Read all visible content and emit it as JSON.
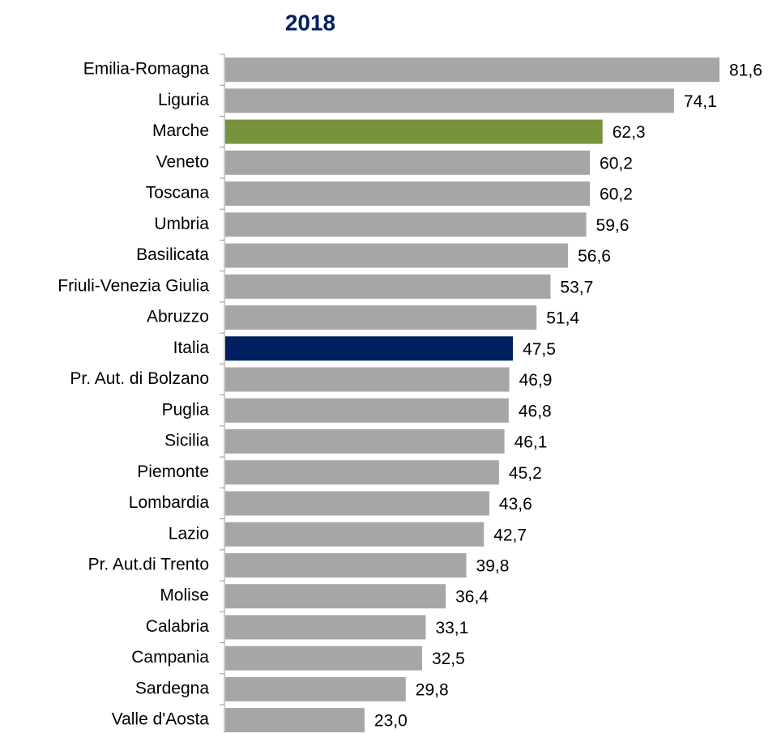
{
  "chart_data": {
    "type": "bar",
    "orientation": "horizontal",
    "title": "2018",
    "categories": [
      "Emilia-Romagna",
      "Liguria",
      "Marche",
      "Veneto",
      "Toscana",
      "Umbria",
      "Basilicata",
      "Friuli-Venezia Giulia",
      "Abruzzo",
      "Italia",
      "Pr. Aut. di Bolzano",
      "Puglia",
      "Sicilia",
      "Piemonte",
      "Lombardia",
      "Lazio",
      "Pr. Aut.di Trento",
      "Molise",
      "Calabria",
      "Campania",
      "Sardegna",
      "Valle d'Aosta"
    ],
    "values": [
      81.6,
      74.1,
      62.3,
      60.2,
      60.2,
      59.6,
      56.6,
      53.7,
      51.4,
      47.5,
      46.9,
      46.8,
      46.1,
      45.2,
      43.6,
      42.7,
      39.8,
      36.4,
      33.1,
      32.5,
      29.8,
      23.0
    ],
    "value_labels": [
      "81,6",
      "74,1",
      "62,3",
      "60,2",
      "60,2",
      "59,6",
      "56,6",
      "53,7",
      "51,4",
      "47,5",
      "46,9",
      "46,8",
      "46,1",
      "45,2",
      "43,6",
      "42,7",
      "39,8",
      "36,4",
      "33,1",
      "32,5",
      "29,8",
      "23,0"
    ],
    "colors": [
      "#a6a6a6",
      "#a6a6a6",
      "#77933c",
      "#a6a6a6",
      "#a6a6a6",
      "#a6a6a6",
      "#a6a6a6",
      "#a6a6a6",
      "#a6a6a6",
      "#002060",
      "#a6a6a6",
      "#a6a6a6",
      "#a6a6a6",
      "#a6a6a6",
      "#a6a6a6",
      "#a6a6a6",
      "#a6a6a6",
      "#a6a6a6",
      "#a6a6a6",
      "#a6a6a6",
      "#a6a6a6",
      "#a6a6a6"
    ]
  }
}
